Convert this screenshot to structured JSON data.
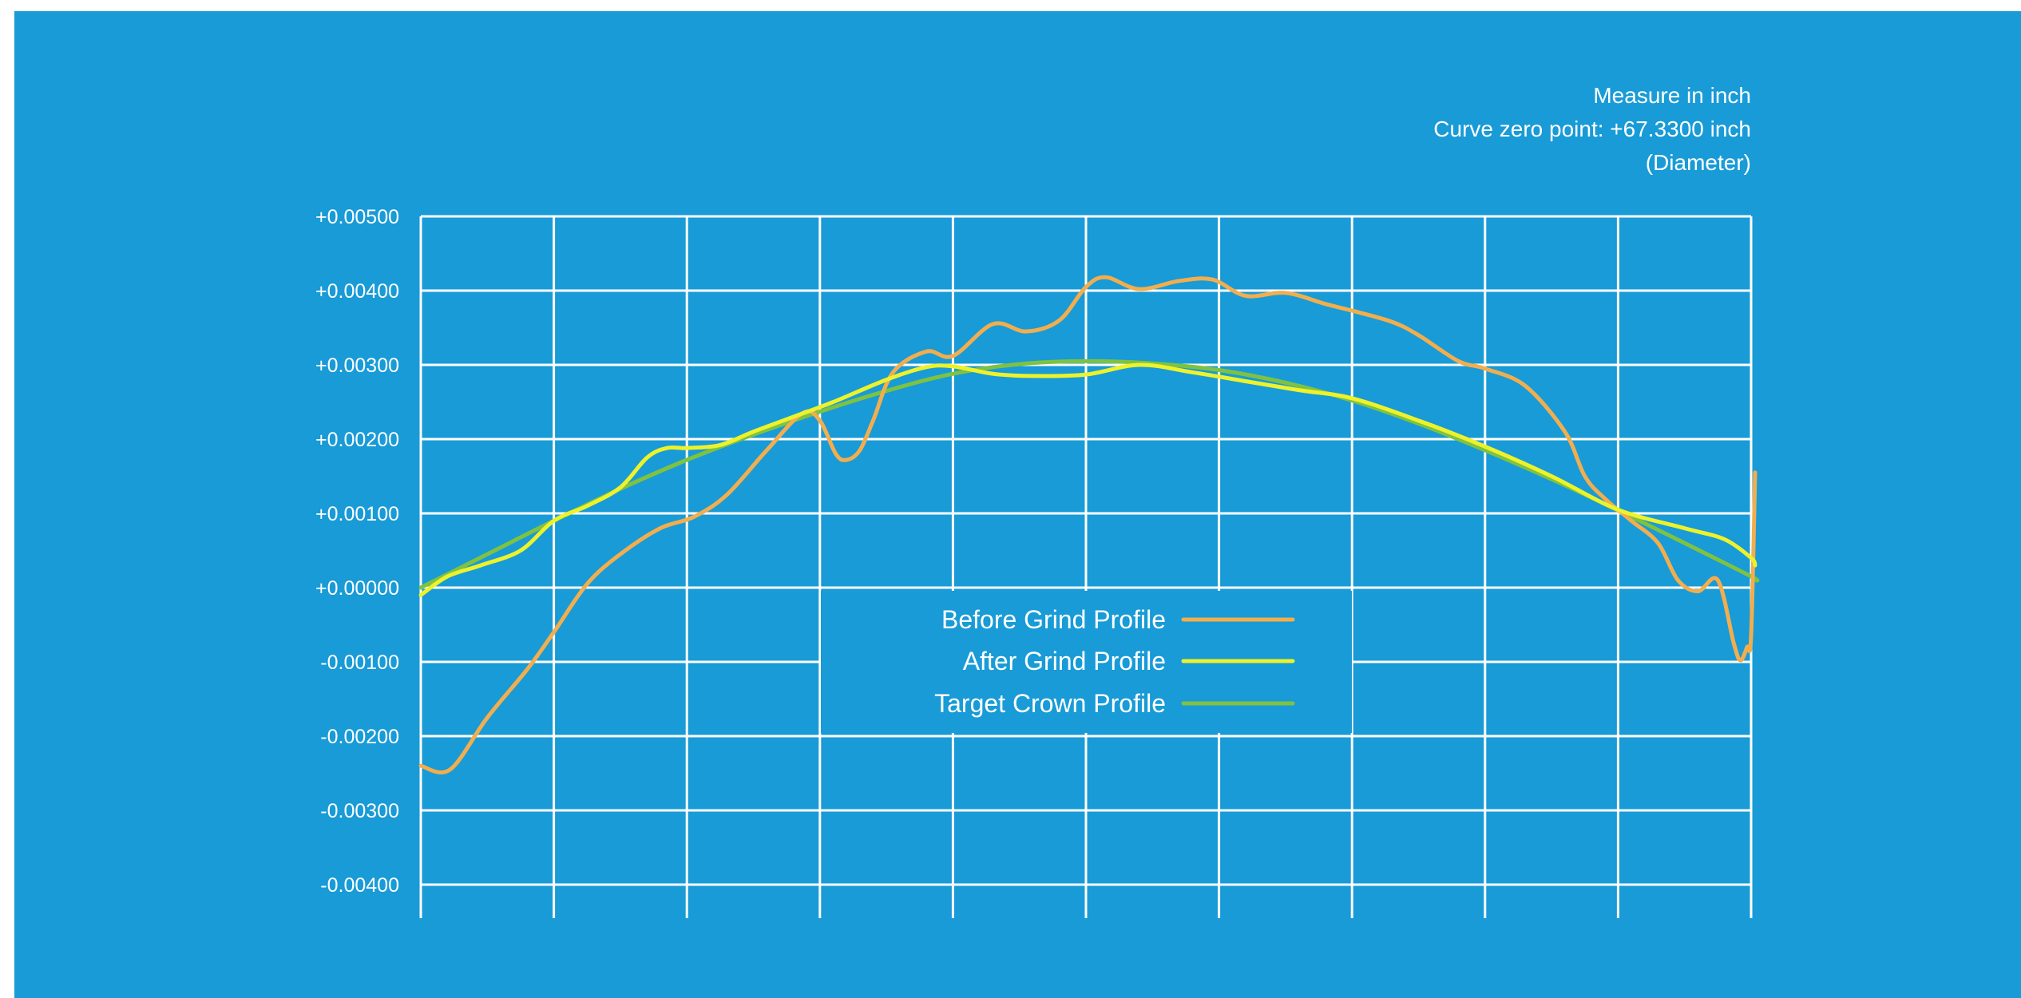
{
  "colors": {
    "background": "#189BD7",
    "grid": "#FFFFFF",
    "text": "#FFFFFF",
    "before": "#F2AE4E",
    "after": "#EEF22A",
    "target": "#7FC242"
  },
  "annotation": {
    "line1": "Measure in inch",
    "line2": "Curve zero point: +67.3300 inch",
    "line3": "(Diameter)"
  },
  "chart_data": {
    "type": "line",
    "grid": true,
    "legend_placement": "bottom-center",
    "ylim": [
      -0.0045,
      0.005
    ],
    "xlim": [
      0,
      10
    ],
    "yticks": [
      {
        "value": 0.005,
        "label": "+0.00500"
      },
      {
        "value": 0.004,
        "label": "+0.00400"
      },
      {
        "value": 0.003,
        "label": "+0.00300"
      },
      {
        "value": 0.002,
        "label": "+0.00200"
      },
      {
        "value": 0.001,
        "label": "+0.00100"
      },
      {
        "value": 0.0,
        "label": "+0.00000"
      },
      {
        "value": -0.001,
        "label": "-0.00100"
      },
      {
        "value": -0.002,
        "label": "-0.00200"
      },
      {
        "value": -0.003,
        "label": "-0.00300"
      },
      {
        "value": -0.004,
        "label": "-0.00400"
      }
    ],
    "xgrid": [
      0,
      1,
      2,
      3,
      4,
      5,
      6,
      7,
      8,
      9,
      10
    ],
    "series": [
      {
        "name": "Before Grind Profile",
        "color": "#F2AE4E",
        "points": [
          [
            0,
            -0.0024
          ],
          [
            0.22,
            -0.00245
          ],
          [
            0.5,
            -0.00175
          ],
          [
            0.8,
            -0.0011
          ],
          [
            1.0,
            -0.0006
          ],
          [
            1.25,
            5e-05
          ],
          [
            1.5,
            0.00045
          ],
          [
            1.8,
            0.0008
          ],
          [
            2.05,
            0.00095
          ],
          [
            2.3,
            0.00125
          ],
          [
            2.6,
            0.00185
          ],
          [
            2.87,
            0.00235
          ],
          [
            3.0,
            0.00225
          ],
          [
            3.12,
            0.0018
          ],
          [
            3.2,
            0.00172
          ],
          [
            3.3,
            0.00185
          ],
          [
            3.4,
            0.00225
          ],
          [
            3.55,
            0.0029
          ],
          [
            3.8,
            0.00318
          ],
          [
            4.0,
            0.00312
          ],
          [
            4.3,
            0.00355
          ],
          [
            4.55,
            0.00345
          ],
          [
            4.8,
            0.0036
          ],
          [
            5.0,
            0.00405
          ],
          [
            5.15,
            0.00418
          ],
          [
            5.4,
            0.00402
          ],
          [
            5.7,
            0.00413
          ],
          [
            5.95,
            0.00415
          ],
          [
            6.2,
            0.00393
          ],
          [
            6.5,
            0.00397
          ],
          [
            6.8,
            0.00382
          ],
          [
            7.0,
            0.00373
          ],
          [
            7.3,
            0.00358
          ],
          [
            7.5,
            0.0034
          ],
          [
            7.8,
            0.00305
          ],
          [
            8.0,
            0.00295
          ],
          [
            8.3,
            0.00272
          ],
          [
            8.6,
            0.0021
          ],
          [
            8.75,
            0.0015
          ],
          [
            8.9,
            0.0012
          ],
          [
            9.1,
            0.0009
          ],
          [
            9.3,
            0.0006
          ],
          [
            9.45,
            0.0001
          ],
          [
            9.6,
            -5e-05
          ],
          [
            9.75,
            0.0001
          ],
          [
            9.87,
            -0.00075
          ],
          [
            9.92,
            -0.00098
          ],
          [
            9.97,
            -0.0008
          ],
          [
            10.0,
            -0.00065
          ],
          [
            10.03,
            0.00155
          ]
        ]
      },
      {
        "name": "After Grind Profile",
        "color": "#EEF22A",
        "points": [
          [
            0,
            -0.0001
          ],
          [
            0.2,
            0.00015
          ],
          [
            0.45,
            0.0003
          ],
          [
            0.75,
            0.0005
          ],
          [
            1.0,
            0.0009
          ],
          [
            1.25,
            0.0011
          ],
          [
            1.5,
            0.00135
          ],
          [
            1.7,
            0.00175
          ],
          [
            1.85,
            0.00188
          ],
          [
            2.0,
            0.00188
          ],
          [
            2.25,
            0.00192
          ],
          [
            2.5,
            0.0021
          ],
          [
            2.8,
            0.0023
          ],
          [
            3.1,
            0.0025
          ],
          [
            3.5,
            0.0028
          ],
          [
            3.8,
            0.00297
          ],
          [
            4.0,
            0.00298
          ],
          [
            4.3,
            0.00288
          ],
          [
            4.6,
            0.00285
          ],
          [
            5.0,
            0.00287
          ],
          [
            5.4,
            0.003
          ],
          [
            5.8,
            0.0029
          ],
          [
            6.2,
            0.00278
          ],
          [
            6.6,
            0.00266
          ],
          [
            7.0,
            0.00255
          ],
          [
            7.5,
            0.00225
          ],
          [
            8.0,
            0.0019
          ],
          [
            8.5,
            0.0015
          ],
          [
            9.0,
            0.00105
          ],
          [
            9.5,
            0.0008
          ],
          [
            9.8,
            0.00065
          ],
          [
            10.0,
            0.0004
          ],
          [
            10.03,
            0.0003
          ]
        ]
      },
      {
        "name": "Target Crown Profile",
        "color": "#7FC242",
        "points": [
          [
            0,
            0.0
          ],
          [
            0.5,
            0.00045
          ],
          [
            1.0,
            0.0009
          ],
          [
            1.5,
            0.00133
          ],
          [
            2.0,
            0.00172
          ],
          [
            2.5,
            0.00206
          ],
          [
            3.0,
            0.00237
          ],
          [
            3.5,
            0.00265
          ],
          [
            4.0,
            0.00288
          ],
          [
            4.5,
            0.00301
          ],
          [
            5.0,
            0.00305
          ],
          [
            5.5,
            0.00302
          ],
          [
            6.0,
            0.00293
          ],
          [
            6.5,
            0.00276
          ],
          [
            7.0,
            0.00252
          ],
          [
            7.5,
            0.00221
          ],
          [
            8.0,
            0.00185
          ],
          [
            8.5,
            0.00146
          ],
          [
            9.0,
            0.00104
          ],
          [
            9.5,
            0.0006
          ],
          [
            10.0,
            0.00015
          ],
          [
            10.03,
            0.0001
          ]
        ]
      }
    ]
  }
}
